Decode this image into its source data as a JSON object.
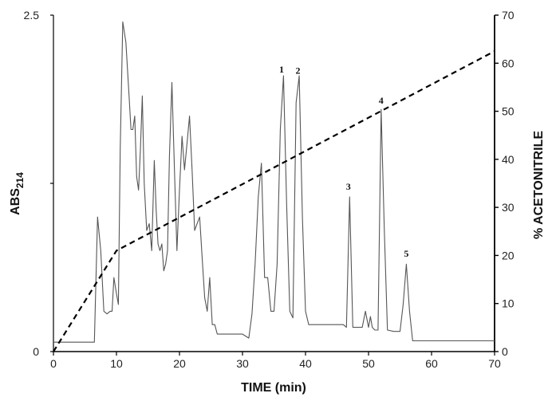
{
  "chart_data": {
    "type": "line",
    "title": "",
    "xlabel": "TIME (min)",
    "ylabel_left": "ABS",
    "ylabel_left_subscript": "214",
    "ylabel_right": "% ACETONITRILE",
    "xlim": [
      0,
      70
    ],
    "ylim_left": [
      0,
      2.5
    ],
    "ylim_right": [
      0,
      70
    ],
    "x_ticks": [
      "0",
      "10",
      "20",
      "30",
      "40",
      "50",
      "60",
      "70"
    ],
    "y_left_ticks": [
      "0",
      "2.5"
    ],
    "y_right_ticks": [
      "0",
      "10",
      "20",
      "30",
      "40",
      "50",
      "60",
      "70"
    ],
    "grid": false,
    "colors": {
      "absorbance": "#555555",
      "gradient": "#000000",
      "axes": "#000000"
    },
    "series": [
      {
        "role": "absorbance",
        "axis": "left",
        "style": "solid",
        "x": [
          0,
          6.5,
          7,
          7.5,
          8,
          8.5,
          9,
          9.3,
          9.6,
          10,
          10.3,
          10.6,
          11,
          11.5,
          12,
          12.3,
          12.6,
          12.9,
          13.2,
          13.5,
          13.8,
          14.1,
          14.4,
          14.8,
          15.2,
          15.6,
          16,
          16.3,
          16.6,
          16.9,
          17.2,
          17.5,
          17.8,
          18.1,
          18.4,
          18.8,
          19.2,
          19.6,
          20,
          20.4,
          20.8,
          21.2,
          21.6,
          22,
          22.4,
          22.8,
          23.2,
          23.6,
          24,
          24.4,
          24.8,
          25.2,
          25.6,
          26,
          27,
          28,
          30,
          31,
          31.5,
          32,
          32.5,
          33,
          33.5,
          34,
          34.5,
          35,
          35.5,
          36,
          36.5,
          37,
          37.5,
          38,
          38.5,
          39,
          39.5,
          40,
          40.5,
          42,
          44,
          45,
          46,
          46.5,
          47,
          47.5,
          48,
          49,
          49.5,
          50,
          50.3,
          50.6,
          51,
          51.5,
          52,
          52.5,
          53,
          54,
          55,
          55.5,
          56,
          56.5,
          57,
          58,
          60,
          62,
          65,
          70
        ],
        "y": [
          0.07,
          0.07,
          1.0,
          0.75,
          0.3,
          0.28,
          0.3,
          0.3,
          0.55,
          0.43,
          0.35,
          1.5,
          2.45,
          2.3,
          1.9,
          1.65,
          1.65,
          1.75,
          1.3,
          1.2,
          1.5,
          1.9,
          1.25,
          0.9,
          0.95,
          0.75,
          1.42,
          1.05,
          0.8,
          0.75,
          0.8,
          0.6,
          0.65,
          0.75,
          1.45,
          2.0,
          1.35,
          0.75,
          1.2,
          1.6,
          1.35,
          1.55,
          1.75,
          1.35,
          0.9,
          0.95,
          1.0,
          0.7,
          0.4,
          0.3,
          0.55,
          0.2,
          0.2,
          0.13,
          0.13,
          0.13,
          0.13,
          0.1,
          0.28,
          0.65,
          1.15,
          1.4,
          0.55,
          0.55,
          0.3,
          0.3,
          0.65,
          1.65,
          2.05,
          1.1,
          0.3,
          0.25,
          1.85,
          2.05,
          1.0,
          0.3,
          0.2,
          0.2,
          0.2,
          0.2,
          0.2,
          0.18,
          1.15,
          0.18,
          0.18,
          0.18,
          0.3,
          0.18,
          0.26,
          0.18,
          0.16,
          0.16,
          1.8,
          0.9,
          0.16,
          0.15,
          0.15,
          0.35,
          0.65,
          0.3,
          0.08,
          0.08,
          0.08,
          0.08,
          0.08,
          0.08
        ]
      },
      {
        "role": "gradient",
        "axis": "right",
        "style": "dashed",
        "x": [
          0,
          10,
          70
        ],
        "y": [
          0,
          21,
          62.5
        ]
      }
    ],
    "annotations": [
      {
        "text": "1",
        "x": 36.2,
        "y": 2.05
      },
      {
        "text": "2",
        "x": 38.8,
        "y": 2.04
      },
      {
        "text": "3",
        "x": 46.8,
        "y": 1.18
      },
      {
        "text": "4",
        "x": 52.0,
        "y": 1.82
      },
      {
        "text": "5",
        "x": 56.0,
        "y": 0.68
      }
    ]
  }
}
